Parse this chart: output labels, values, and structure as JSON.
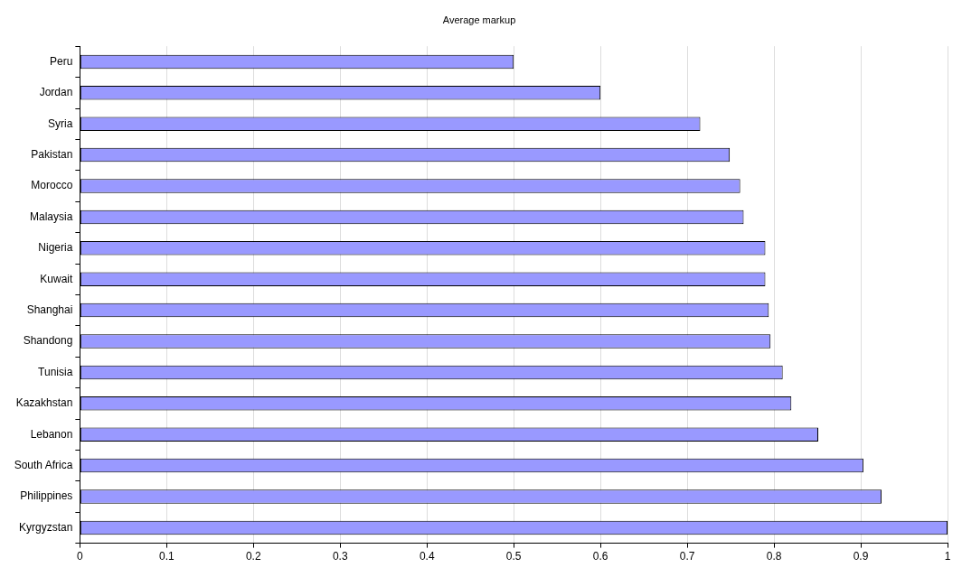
{
  "chart_data": {
    "type": "bar",
    "orientation": "horizontal",
    "title": "Average markup",
    "categories": [
      "Peru",
      "Jordan",
      "Syria",
      "Pakistan",
      "Morocco",
      "Malaysia",
      "Nigeria",
      "Kuwait",
      "Shanghai",
      "Shandong",
      "Tunisia",
      "Kazakhstan",
      "Lebanon",
      "South Africa",
      "Philippines",
      "Kyrgyzstan"
    ],
    "values": [
      0.5,
      0.6,
      0.715,
      0.749,
      0.761,
      0.765,
      0.79,
      0.79,
      0.794,
      0.796,
      0.81,
      0.82,
      0.851,
      0.903,
      0.924,
      1.0
    ],
    "color": "#9999ff",
    "xlim": [
      0,
      1
    ],
    "xticks": [
      0,
      0.1,
      0.2,
      0.3,
      0.4,
      0.5,
      0.6,
      0.7,
      0.8,
      0.9,
      1
    ],
    "grid": "x",
    "legend": false
  }
}
